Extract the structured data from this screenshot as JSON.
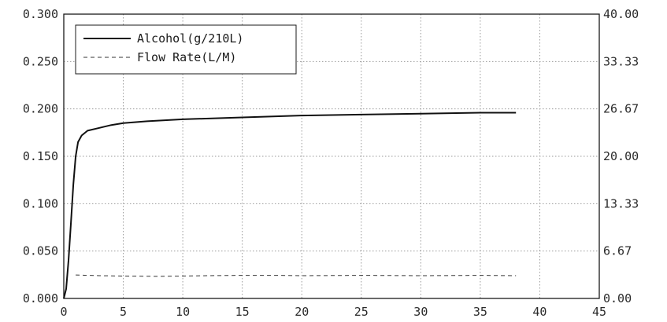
{
  "chart_data": {
    "type": "line",
    "title": "",
    "xlabel": "",
    "ylabel": "",
    "y2label": "",
    "xlim": [
      0,
      45
    ],
    "ylim": [
      0,
      0.3
    ],
    "y2lim": [
      0,
      40
    ],
    "grid": true,
    "legend_position": "top-left",
    "x_ticks": [
      "0",
      "5",
      "10",
      "15",
      "20",
      "25",
      "30",
      "35",
      "40",
      "45"
    ],
    "y_ticks": [
      "0.000",
      "0.050",
      "0.100",
      "0.150",
      "0.200",
      "0.250",
      "0.300"
    ],
    "y2_ticks": [
      "0.00",
      "6.67",
      "13.33",
      "20.00",
      "26.67",
      "33.33",
      "40.00"
    ],
    "series": [
      {
        "name": "Alcohol(g/210L)",
        "axis": "left",
        "style": "solid",
        "x": [
          0,
          0.2,
          0.4,
          0.6,
          0.8,
          1.0,
          1.2,
          1.5,
          2,
          3,
          4,
          5,
          7,
          10,
          15,
          20,
          25,
          30,
          35,
          38
        ],
        "y": [
          0.0,
          0.01,
          0.04,
          0.08,
          0.12,
          0.15,
          0.165,
          0.172,
          0.177,
          0.18,
          0.183,
          0.185,
          0.187,
          0.189,
          0.191,
          0.193,
          0.194,
          0.195,
          0.196,
          0.196
        ]
      },
      {
        "name": "Flow Rate(L/M)",
        "axis": "right",
        "style": "dashed",
        "x": [
          1,
          2,
          3,
          5,
          8,
          10,
          12,
          15,
          18,
          20,
          25,
          30,
          35,
          38
        ],
        "y": [
          3.3,
          3.25,
          3.2,
          3.15,
          3.1,
          3.15,
          3.2,
          3.25,
          3.25,
          3.2,
          3.25,
          3.2,
          3.25,
          3.2
        ]
      }
    ]
  }
}
